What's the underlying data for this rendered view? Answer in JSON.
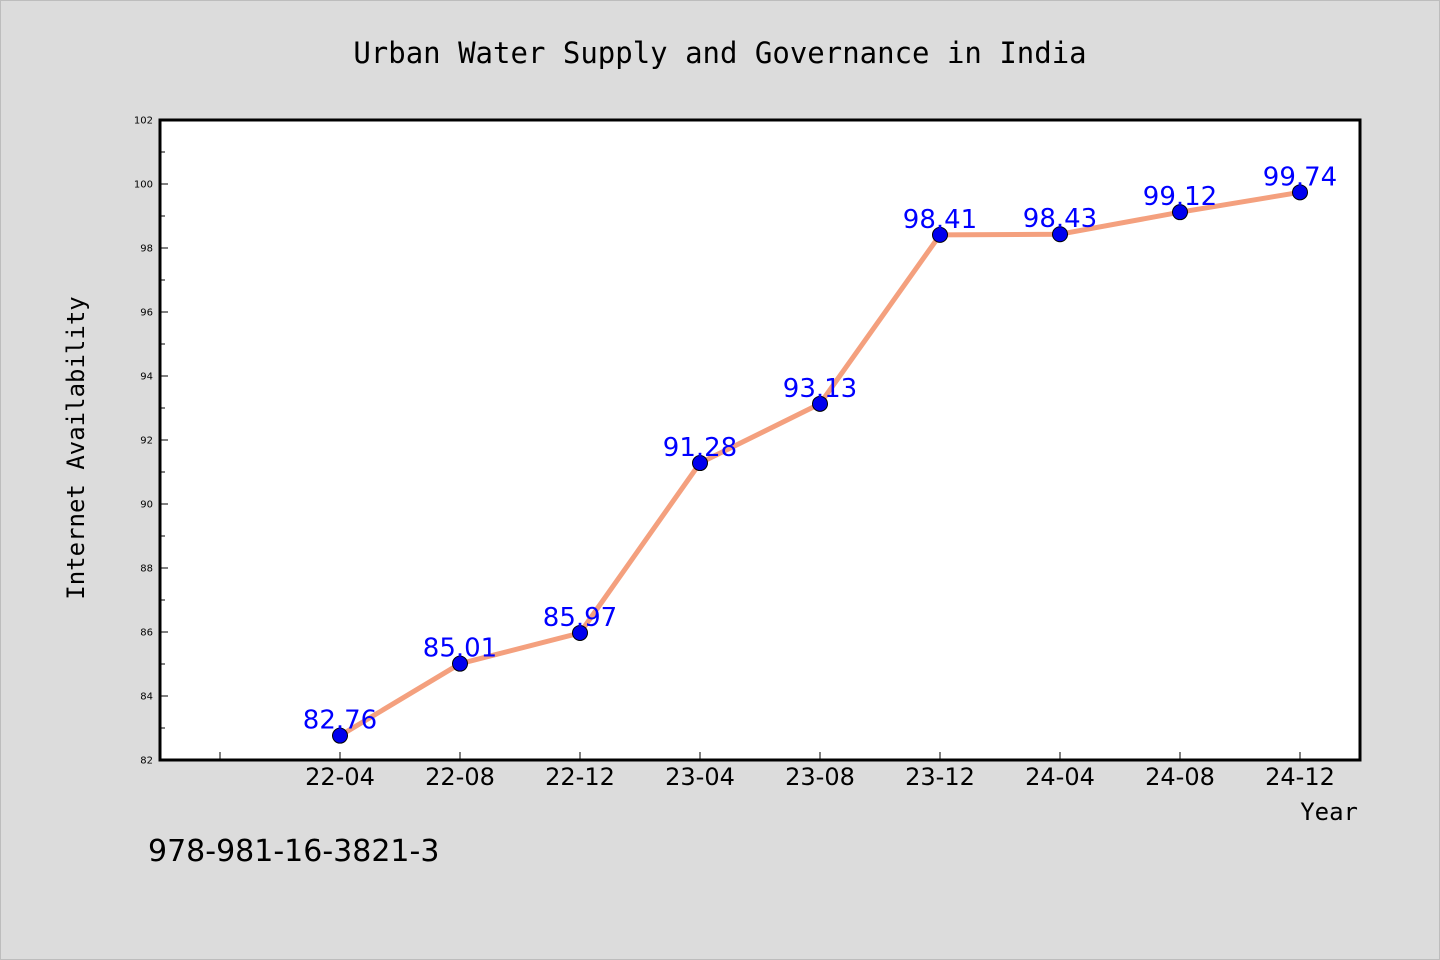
{
  "chart_data": {
    "type": "line",
    "title": "Urban Water Supply and Governance in India",
    "xlabel": "Year",
    "ylabel": "Internet Availability",
    "categories": [
      "22-04",
      "22-08",
      "22-12",
      "23-04",
      "23-08",
      "23-12",
      "24-04",
      "24-08",
      "24-12"
    ],
    "series": [
      {
        "values": [
          82.76,
          85.01,
          85.97,
          91.28,
          93.13,
          98.41,
          98.43,
          99.12,
          99.74
        ],
        "labels": [
          "82.76",
          "85.01",
          "85.97",
          "91.28",
          "93.13",
          "98.41",
          "98.43",
          "99.12",
          "99.74"
        ],
        "line_color": "#f4a07e",
        "marker_color": "#0000ee"
      }
    ],
    "ylim": [
      82,
      102
    ],
    "yticks": [
      "82",
      "84",
      "86",
      "88",
      "90",
      "92",
      "94",
      "96",
      "98",
      "100",
      "102"
    ],
    "grid": false,
    "legend": "none",
    "label_color": "#0000ff"
  },
  "footer": {
    "isbn": "978-981-16-3821-3"
  }
}
